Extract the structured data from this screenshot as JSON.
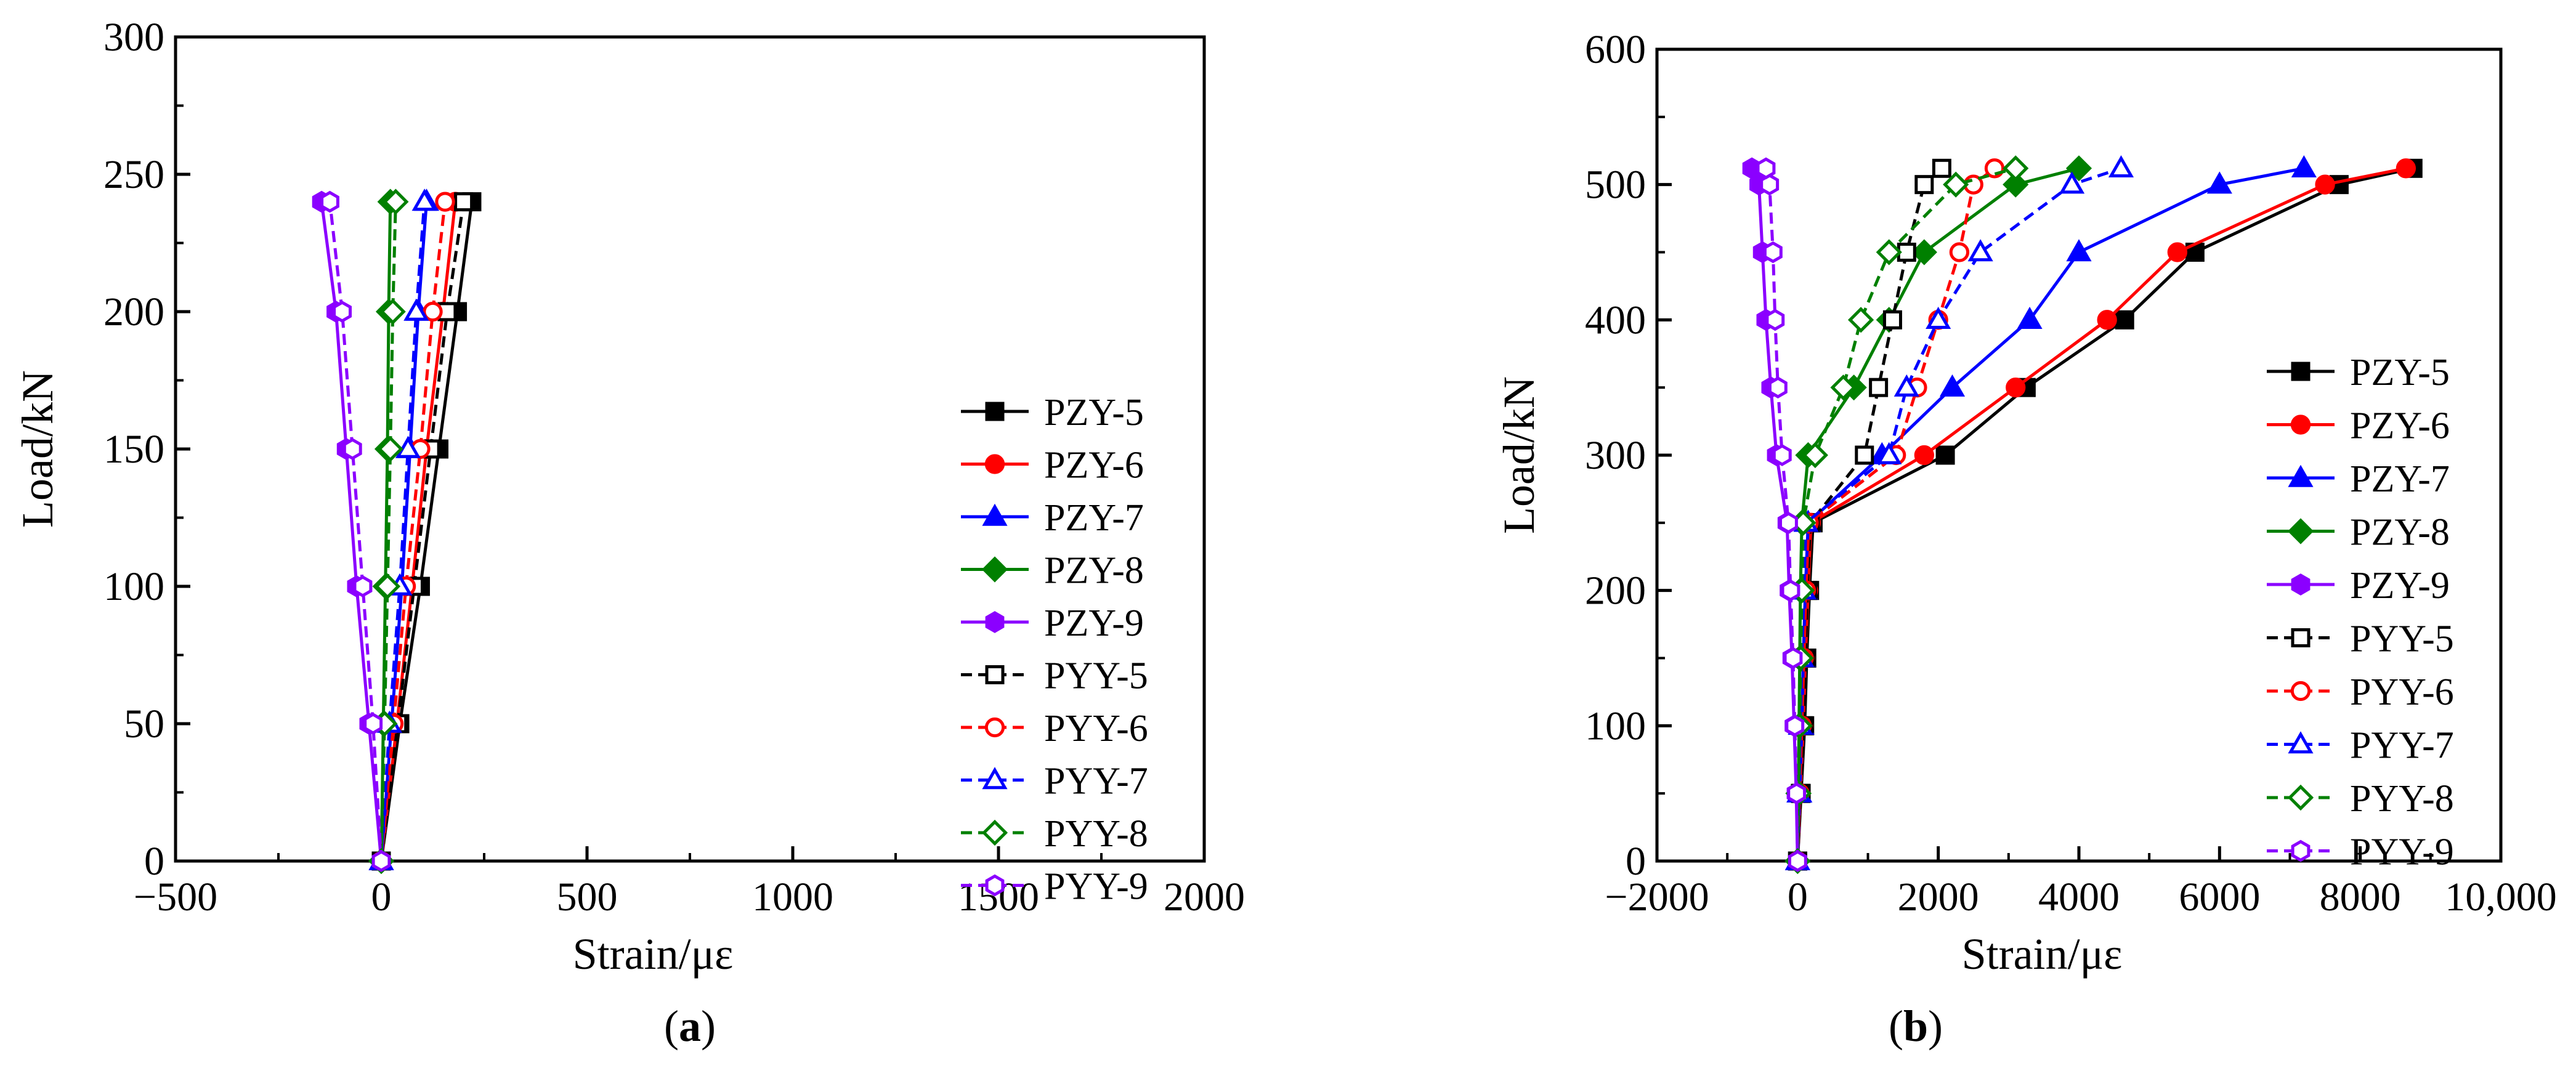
{
  "chart_data": [
    {
      "type": "line",
      "panel_label": "a",
      "xlabel": "Strain/με",
      "ylabel": "Load/kN",
      "xlim": [
        -500,
        2000
      ],
      "ylim": [
        0,
        300
      ],
      "xticks": [
        -500,
        0,
        500,
        1000,
        1500,
        2000
      ],
      "xtick_labels": [
        "−500",
        "0",
        "500",
        "1000",
        "1500",
        "2000"
      ],
      "yticks": [
        0,
        50,
        100,
        150,
        200,
        250,
        300
      ],
      "ytick_labels": [
        "0",
        "50",
        "100",
        "150",
        "200",
        "250",
        "300"
      ],
      "legend_position": "right",
      "series": [
        {
          "name": "PZY-5",
          "color": "#000000",
          "marker": "square",
          "filled": true,
          "dashed": false,
          "points": [
            [
              0,
              0
            ],
            [
              45,
              50
            ],
            [
              95,
              100
            ],
            [
              140,
              150
            ],
            [
              185,
              200
            ],
            [
              220,
              240
            ]
          ]
        },
        {
          "name": "PZY-6",
          "color": "#ff0000",
          "marker": "circle",
          "filled": true,
          "dashed": false,
          "points": [
            [
              0,
              0
            ],
            [
              38,
              50
            ],
            [
              75,
              100
            ],
            [
              110,
              150
            ],
            [
              150,
              200
            ],
            [
              180,
              240
            ]
          ]
        },
        {
          "name": "PZY-7",
          "color": "#0000ff",
          "marker": "triangle",
          "filled": true,
          "dashed": false,
          "points": [
            [
              0,
              0
            ],
            [
              25,
              50
            ],
            [
              50,
              100
            ],
            [
              70,
              150
            ],
            [
              90,
              200
            ],
            [
              110,
              240
            ]
          ]
        },
        {
          "name": "PZY-8",
          "color": "#008000",
          "marker": "diamond",
          "filled": true,
          "dashed": false,
          "points": [
            [
              0,
              0
            ],
            [
              5,
              50
            ],
            [
              10,
              100
            ],
            [
              15,
              150
            ],
            [
              18,
              200
            ],
            [
              22,
              240
            ]
          ]
        },
        {
          "name": "PZY-9",
          "color": "#8b00ff",
          "marker": "hexagon",
          "filled": true,
          "dashed": false,
          "points": [
            [
              0,
              0
            ],
            [
              -30,
              50
            ],
            [
              -60,
              100
            ],
            [
              -85,
              150
            ],
            [
              -110,
              200
            ],
            [
              -145,
              240
            ]
          ]
        },
        {
          "name": "PYY-5",
          "color": "#000000",
          "marker": "square",
          "filled": false,
          "dashed": true,
          "points": [
            [
              0,
              0
            ],
            [
              40,
              50
            ],
            [
              80,
              100
            ],
            [
              120,
              150
            ],
            [
              160,
              200
            ],
            [
              200,
              240
            ]
          ]
        },
        {
          "name": "PYY-6",
          "color": "#ff0000",
          "marker": "circle",
          "filled": false,
          "dashed": true,
          "points": [
            [
              0,
              0
            ],
            [
              30,
              50
            ],
            [
              60,
              100
            ],
            [
              95,
              150
            ],
            [
              125,
              200
            ],
            [
              155,
              240
            ]
          ]
        },
        {
          "name": "PYY-7",
          "color": "#0000ff",
          "marker": "triangle",
          "filled": false,
          "dashed": true,
          "points": [
            [
              0,
              0
            ],
            [
              20,
              50
            ],
            [
              45,
              100
            ],
            [
              65,
              150
            ],
            [
              85,
              200
            ],
            [
              105,
              240
            ]
          ]
        },
        {
          "name": "PYY-8",
          "color": "#008000",
          "marker": "diamond",
          "filled": false,
          "dashed": true,
          "points": [
            [
              0,
              0
            ],
            [
              8,
              50
            ],
            [
              15,
              100
            ],
            [
              22,
              150
            ],
            [
              28,
              200
            ],
            [
              35,
              240
            ]
          ]
        },
        {
          "name": "PYY-9",
          "color": "#8b00ff",
          "marker": "hexagon",
          "filled": false,
          "dashed": true,
          "points": [
            [
              0,
              0
            ],
            [
              -20,
              50
            ],
            [
              -45,
              100
            ],
            [
              -70,
              150
            ],
            [
              -95,
              200
            ],
            [
              -125,
              240
            ]
          ]
        }
      ]
    },
    {
      "type": "line",
      "panel_label": "b",
      "xlabel": "Strain/με",
      "ylabel": "Load/kN",
      "xlim": [
        -2000,
        10000
      ],
      "ylim": [
        0,
        600
      ],
      "xticks": [
        -2000,
        0,
        2000,
        4000,
        6000,
        8000,
        10000
      ],
      "xtick_labels": [
        "−2000",
        "0",
        "2000",
        "4000",
        "6000",
        "8000",
        "10,000"
      ],
      "yticks": [
        0,
        100,
        200,
        300,
        400,
        500,
        600
      ],
      "ytick_labels": [
        "0",
        "100",
        "200",
        "300",
        "400",
        "500",
        "600"
      ],
      "legend_position": "right",
      "series": [
        {
          "name": "PZY-5",
          "color": "#000000",
          "marker": "square",
          "filled": true,
          "dashed": false,
          "points": [
            [
              0,
              0
            ],
            [
              50,
              50
            ],
            [
              100,
              100
            ],
            [
              130,
              150
            ],
            [
              170,
              200
            ],
            [
              220,
              250
            ],
            [
              2100,
              300
            ],
            [
              3250,
              350
            ],
            [
              4650,
              400
            ],
            [
              5650,
              450
            ],
            [
              7700,
              500
            ],
            [
              8750,
              512
            ]
          ]
        },
        {
          "name": "PZY-6",
          "color": "#ff0000",
          "marker": "circle",
          "filled": true,
          "dashed": false,
          "points": [
            [
              0,
              0
            ],
            [
              40,
              50
            ],
            [
              80,
              100
            ],
            [
              110,
              150
            ],
            [
              150,
              200
            ],
            [
              190,
              250
            ],
            [
              1800,
              300
            ],
            [
              3100,
              350
            ],
            [
              4400,
              400
            ],
            [
              5400,
              450
            ],
            [
              7500,
              500
            ],
            [
              8650,
              512
            ]
          ]
        },
        {
          "name": "PZY-7",
          "color": "#0000ff",
          "marker": "triangle",
          "filled": true,
          "dashed": false,
          "points": [
            [
              0,
              0
            ],
            [
              30,
              50
            ],
            [
              60,
              100
            ],
            [
              80,
              150
            ],
            [
              110,
              200
            ],
            [
              150,
              250
            ],
            [
              1200,
              300
            ],
            [
              2200,
              350
            ],
            [
              3300,
              400
            ],
            [
              4000,
              450
            ],
            [
              6000,
              500
            ],
            [
              7200,
              512
            ]
          ]
        },
        {
          "name": "PZY-8",
          "color": "#008000",
          "marker": "diamond",
          "filled": true,
          "dashed": false,
          "points": [
            [
              0,
              0
            ],
            [
              10,
              50
            ],
            [
              20,
              100
            ],
            [
              30,
              150
            ],
            [
              40,
              200
            ],
            [
              60,
              250
            ],
            [
              150,
              300
            ],
            [
              800,
              350
            ],
            [
              1300,
              400
            ],
            [
              1800,
              450
            ],
            [
              3100,
              500
            ],
            [
              4000,
              512
            ]
          ]
        },
        {
          "name": "PZY-9",
          "color": "#8b00ff",
          "marker": "hexagon",
          "filled": true,
          "dashed": false,
          "points": [
            [
              0,
              0
            ],
            [
              -20,
              50
            ],
            [
              -50,
              100
            ],
            [
              -80,
              150
            ],
            [
              -120,
              200
            ],
            [
              -150,
              250
            ],
            [
              -300,
              300
            ],
            [
              -380,
              350
            ],
            [
              -450,
              400
            ],
            [
              -500,
              450
            ],
            [
              -550,
              500
            ],
            [
              -650,
              512
            ]
          ]
        },
        {
          "name": "PYY-5",
          "color": "#000000",
          "marker": "square",
          "filled": false,
          "dashed": true,
          "points": [
            [
              0,
              0
            ],
            [
              40,
              50
            ],
            [
              80,
              100
            ],
            [
              110,
              150
            ],
            [
              140,
              200
            ],
            [
              180,
              250
            ],
            [
              950,
              300
            ],
            [
              1150,
              350
            ],
            [
              1350,
              400
            ],
            [
              1550,
              450
            ],
            [
              1800,
              500
            ],
            [
              2050,
              512
            ]
          ]
        },
        {
          "name": "PYY-6",
          "color": "#ff0000",
          "marker": "circle",
          "filled": false,
          "dashed": true,
          "points": [
            [
              0,
              0
            ],
            [
              30,
              50
            ],
            [
              60,
              100
            ],
            [
              90,
              150
            ],
            [
              120,
              200
            ],
            [
              160,
              250
            ],
            [
              1400,
              300
            ],
            [
              1700,
              350
            ],
            [
              2000,
              400
            ],
            [
              2300,
              450
            ],
            [
              2500,
              500
            ],
            [
              2800,
              512
            ]
          ]
        },
        {
          "name": "PYY-7",
          "color": "#0000ff",
          "marker": "triangle",
          "filled": false,
          "dashed": true,
          "points": [
            [
              0,
              0
            ],
            [
              20,
              50
            ],
            [
              40,
              100
            ],
            [
              60,
              150
            ],
            [
              90,
              200
            ],
            [
              120,
              250
            ],
            [
              1300,
              300
            ],
            [
              1550,
              350
            ],
            [
              2000,
              400
            ],
            [
              2600,
              450
            ],
            [
              3900,
              500
            ],
            [
              4600,
              512
            ]
          ]
        },
        {
          "name": "PYY-8",
          "color": "#008000",
          "marker": "diamond",
          "filled": false,
          "dashed": true,
          "points": [
            [
              0,
              0
            ],
            [
              15,
              50
            ],
            [
              30,
              100
            ],
            [
              45,
              150
            ],
            [
              60,
              200
            ],
            [
              80,
              250
            ],
            [
              250,
              300
            ],
            [
              650,
              350
            ],
            [
              900,
              400
            ],
            [
              1300,
              450
            ],
            [
              2250,
              500
            ],
            [
              3100,
              512
            ]
          ]
        },
        {
          "name": "PYY-9",
          "color": "#8b00ff",
          "marker": "hexagon",
          "filled": false,
          "dashed": true,
          "points": [
            [
              0,
              0
            ],
            [
              -15,
              50
            ],
            [
              -40,
              100
            ],
            [
              -65,
              150
            ],
            [
              -100,
              200
            ],
            [
              -130,
              250
            ],
            [
              -220,
              300
            ],
            [
              -280,
              350
            ],
            [
              -320,
              400
            ],
            [
              -350,
              450
            ],
            [
              -400,
              500
            ],
            [
              -450,
              512
            ]
          ]
        }
      ]
    }
  ]
}
